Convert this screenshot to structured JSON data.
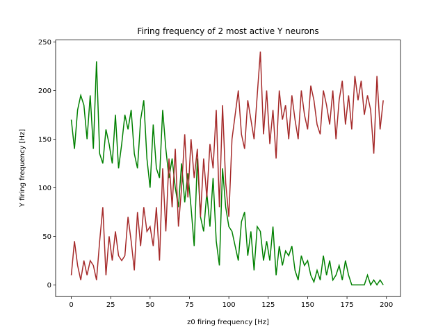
{
  "chart_data": {
    "type": "line",
    "title": "Firing frequency of 2 most active Y neurons",
    "xlabel": "z0 firing frequency [Hz]",
    "ylabel": "Y firing frequency [Hz]",
    "x": [
      0,
      2,
      4,
      6,
      8,
      10,
      12,
      14,
      16,
      18,
      20,
      22,
      24,
      26,
      28,
      30,
      32,
      34,
      36,
      38,
      40,
      42,
      44,
      46,
      48,
      50,
      52,
      54,
      56,
      58,
      60,
      62,
      64,
      66,
      68,
      70,
      72,
      74,
      76,
      78,
      80,
      82,
      84,
      86,
      88,
      90,
      92,
      94,
      96,
      98,
      100,
      102,
      104,
      106,
      108,
      110,
      112,
      114,
      116,
      118,
      120,
      122,
      124,
      126,
      128,
      130,
      132,
      134,
      136,
      138,
      140,
      142,
      144,
      146,
      148,
      150,
      152,
      154,
      156,
      158,
      160,
      162,
      164,
      166,
      168,
      170,
      172,
      174,
      176,
      178,
      180,
      182,
      184,
      186,
      188,
      190,
      192,
      194,
      196,
      198
    ],
    "series": [
      {
        "color": "#008000",
        "values": [
          170,
          140,
          180,
          195,
          185,
          150,
          195,
          140,
          230,
          135,
          125,
          160,
          145,
          125,
          175,
          120,
          145,
          175,
          160,
          180,
          135,
          120,
          170,
          190,
          130,
          100,
          165,
          120,
          110,
          180,
          140,
          110,
          130,
          100,
          80,
          125,
          85,
          115,
          80,
          40,
          130,
          70,
          55,
          95,
          60,
          110,
          45,
          20,
          120,
          80,
          60,
          55,
          40,
          25,
          65,
          75,
          30,
          55,
          15,
          60,
          55,
          25,
          45,
          25,
          60,
          10,
          40,
          20,
          35,
          30,
          40,
          15,
          5,
          30,
          20,
          25,
          10,
          3,
          15,
          5,
          30,
          10,
          25,
          5,
          10,
          20,
          5,
          25,
          10,
          0,
          0,
          0,
          0,
          0,
          10,
          0,
          5,
          0,
          5,
          0
        ]
      },
      {
        "color": "#a52a2a",
        "values": [
          10,
          45,
          20,
          5,
          25,
          10,
          25,
          20,
          5,
          45,
          80,
          10,
          50,
          25,
          55,
          30,
          25,
          30,
          70,
          45,
          15,
          75,
          40,
          80,
          55,
          60,
          40,
          80,
          25,
          120,
          55,
          130,
          80,
          140,
          60,
          100,
          155,
          90,
          150,
          110,
          140,
          70,
          130,
          90,
          145,
          120,
          180,
          80,
          185,
          105,
          70,
          150,
          175,
          200,
          155,
          140,
          190,
          170,
          150,
          195,
          240,
          155,
          200,
          145,
          180,
          130,
          200,
          170,
          185,
          150,
          195,
          170,
          150,
          200,
          175,
          160,
          205,
          190,
          165,
          155,
          200,
          185,
          165,
          200,
          150,
          190,
          210,
          165,
          195,
          160,
          215,
          190,
          210,
          175,
          195,
          180,
          135,
          215,
          160,
          190
        ]
      }
    ],
    "xlim": [
      -9.95,
      208.95
    ],
    "ylim": [
      -12,
      252
    ],
    "xticks": [
      0,
      25,
      50,
      75,
      100,
      125,
      150,
      175,
      200
    ],
    "yticks": [
      0,
      50,
      100,
      150,
      200,
      250
    ],
    "grid": false
  }
}
